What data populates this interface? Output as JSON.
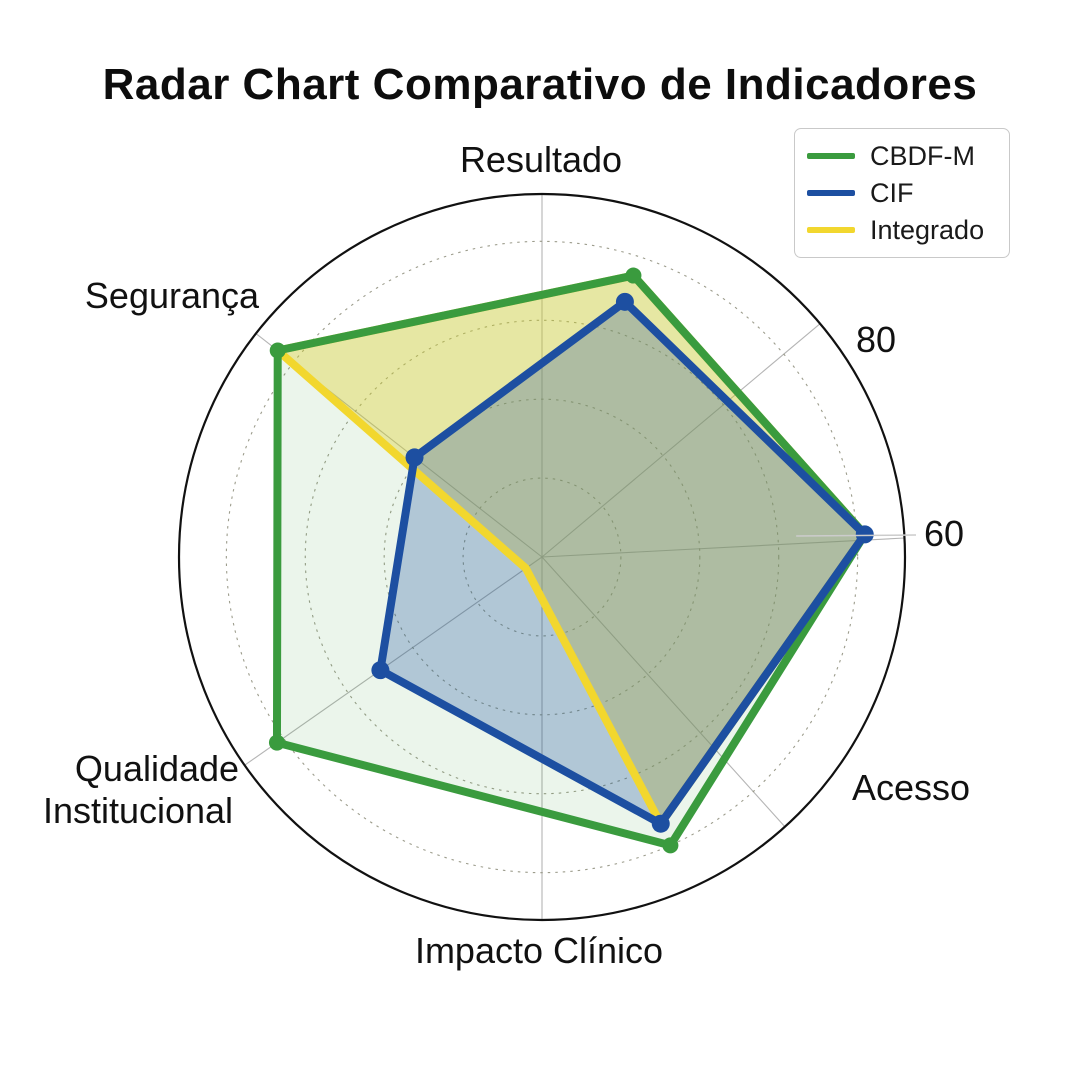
{
  "page": {
    "background_color": "#ffffff"
  },
  "chart_data": {
    "type": "radar",
    "title": "Radar Chart Comparativo de Indicadores",
    "categories": [
      "Resultado",
      "Acesso",
      "Impacto Clínico",
      "Qualidade Institucional",
      "Segurança"
    ],
    "series": [
      {
        "name": "CBDF-M",
        "color": "#3a9b3e",
        "fill_opacity": 0.1,
        "values": [
          75,
          82,
          80,
          82,
          85
        ]
      },
      {
        "name": "CIF",
        "color": "#1d4fa1",
        "fill_opacity": 0.28,
        "values": [
          68,
          82,
          74,
          50,
          41
        ]
      },
      {
        "name": "Integrado",
        "color": "#f2d72e",
        "fill_opacity": 0.38,
        "values": [
          75,
          82,
          74,
          5,
          85
        ]
      }
    ],
    "radial_ticks": [
      80,
      60
    ],
    "grid_ring_values": [
      20,
      40,
      60,
      80
    ],
    "r_max": 92,
    "axis_angles_deg": [
      72,
      4,
      294,
      215,
      142
    ],
    "grid_style": "dotted rings, gray spokes, solid outer circle",
    "legend_position": "top-right",
    "legend_entries": [
      "CBDF-M",
      "CIF",
      "Integrado"
    ]
  }
}
